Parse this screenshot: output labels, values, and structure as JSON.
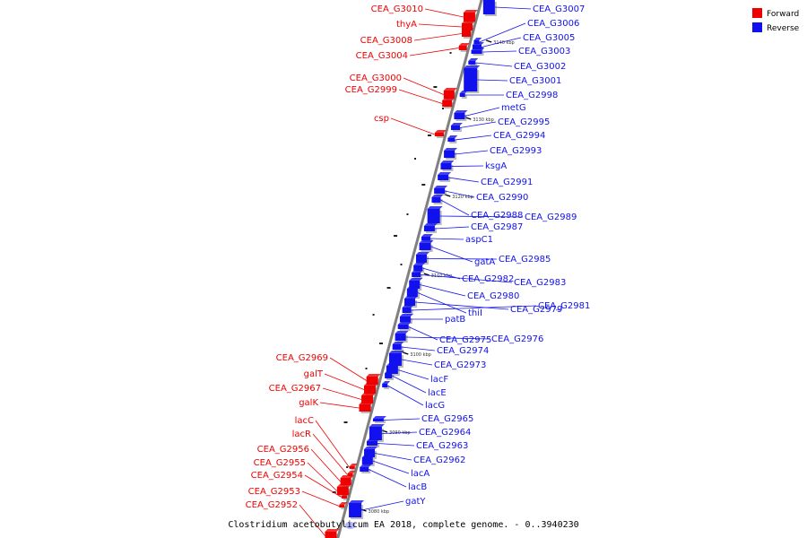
{
  "caption": "Clostridium acetobutylicum EA 2018, complete genome. - 0..3940230",
  "colors": {
    "forward": "#ee0000",
    "reverse": "#1111ee",
    "axis": "#808080"
  },
  "legend": [
    {
      "label": "Forward",
      "color": "#ee0000"
    },
    {
      "label": "Reverse",
      "color": "#1111ee"
    }
  ],
  "ticks": [
    "3140 kbp",
    "3130 kbp",
    "3120 kbp",
    "3110 kbp",
    "3100 kbp",
    "3090 kbp",
    "3080 kbp"
  ],
  "forward_genes": [
    "CEA_G3010",
    "thyA",
    "CEA_G3008",
    "CEA_G3004",
    "CEA_G3000",
    "CEA_G2999",
    "csp",
    "CEA_G2969",
    "galT",
    "CEA_G2967",
    "galK",
    "lacC",
    "lacR",
    "CEA_G2956",
    "CEA_G2955",
    "CEA_G2954",
    "CEA_G2953",
    "CEA_G2952"
  ],
  "reverse_genes": [
    "CEA_G3007",
    "CEA_G3006",
    "CEA_G3005",
    "CEA_G3003",
    "CEA_G3002",
    "CEA_G3001",
    "CEA_G2998",
    "metG",
    "CEA_G2995",
    "CEA_G2994",
    "CEA_G2993",
    "ksgA",
    "CEA_G2991",
    "CEA_G2990",
    "CEA_G2988",
    "CEA_G2989",
    "CEA_G2987",
    "aspC1",
    "gatA",
    "CEA_G2985",
    "CEA_G2982",
    "CEA_G2983",
    "CEA_G2980",
    "thiI",
    "CEA_G2979",
    "CEA_G2981",
    "patB",
    "CEA_G2975",
    "CEA_G2976",
    "CEA_G2974",
    "CEA_G2973",
    "lacF",
    "lacE",
    "lacG",
    "CEA_G2965",
    "CEA_G2964",
    "CEA_G2963",
    "CEA_G2962",
    "lacA",
    "lacB",
    "gatY"
  ]
}
